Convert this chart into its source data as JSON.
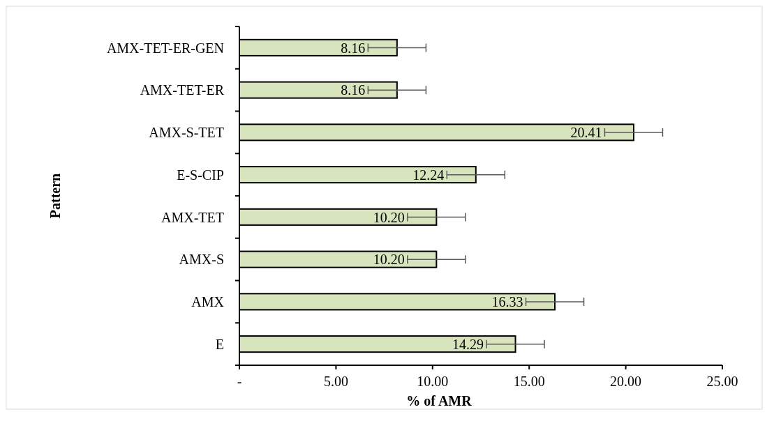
{
  "chart_data": {
    "type": "bar",
    "orientation": "horizontal",
    "xlabel": "% of AMR",
    "ylabel": "Pattern",
    "categories": [
      "AMX-TET-ER-GEN",
      "AMX-TET-ER",
      "AMX-S-TET",
      "E-S-CIP",
      "AMX-TET",
      "AMX-S",
      "AMX",
      "E"
    ],
    "values": [
      8.16,
      8.16,
      20.41,
      12.24,
      10.2,
      10.2,
      16.33,
      14.29
    ],
    "value_labels": [
      "8.16",
      "8.16",
      "20.41",
      "12.24",
      "10.20",
      "10.20",
      "16.33",
      "14.29"
    ],
    "errors": [
      1.5,
      1.5,
      1.5,
      1.5,
      1.5,
      1.5,
      1.5,
      1.5
    ],
    "color": "#d7e4bd",
    "xlim": [
      0,
      25
    ],
    "xticks": [
      {
        "value": 0,
        "label": "-"
      },
      {
        "value": 5,
        "label": "5.00"
      },
      {
        "value": 10,
        "label": "10.00"
      },
      {
        "value": 15,
        "label": "15.00"
      },
      {
        "value": 20,
        "label": "20.00"
      },
      {
        "value": 25,
        "label": "25.00"
      }
    ],
    "grid": false
  }
}
